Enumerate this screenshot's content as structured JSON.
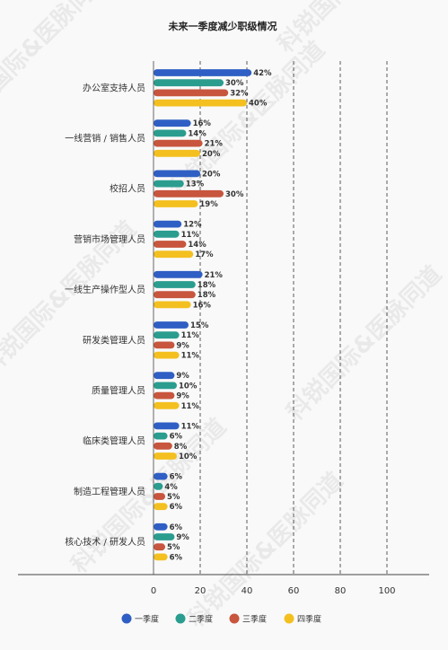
{
  "chart_data": {
    "type": "bar",
    "orientation": "horizontal",
    "title": "未来一季度减少职级情况",
    "categories": [
      "办公室支持人员",
      "一线营销 / 销售人员",
      "校招人员",
      "营销市场管理人员",
      "一线生产操作型人员",
      "研发类管理人员",
      "质量管理人员",
      "临床类管理人员",
      "制造工程管理人员",
      "核心技术 / 研发人员"
    ],
    "series": [
      {
        "name": "一季度",
        "color": "#2f5fc4",
        "values": [
          42,
          16,
          20,
          12,
          21,
          15,
          9,
          11,
          6,
          6
        ]
      },
      {
        "name": "二季度",
        "color": "#2a9d8f",
        "values": [
          30,
          14,
          13,
          11,
          18,
          11,
          10,
          6,
          4,
          9
        ]
      },
      {
        "name": "三季度",
        "color": "#c8553d",
        "values": [
          32,
          21,
          30,
          14,
          18,
          9,
          9,
          8,
          5,
          5
        ]
      },
      {
        "name": "四季度",
        "color": "#f4c020",
        "values": [
          40,
          20,
          19,
          17,
          16,
          11,
          11,
          10,
          6,
          6
        ]
      }
    ],
    "value_suffix": "%",
    "xlim": [
      0,
      100
    ],
    "xticks": [
      0,
      20,
      40,
      60,
      80,
      100
    ],
    "grid": "vertical-dashed",
    "legend_position": "bottom"
  },
  "watermark": "科锐国际&医脉同道"
}
